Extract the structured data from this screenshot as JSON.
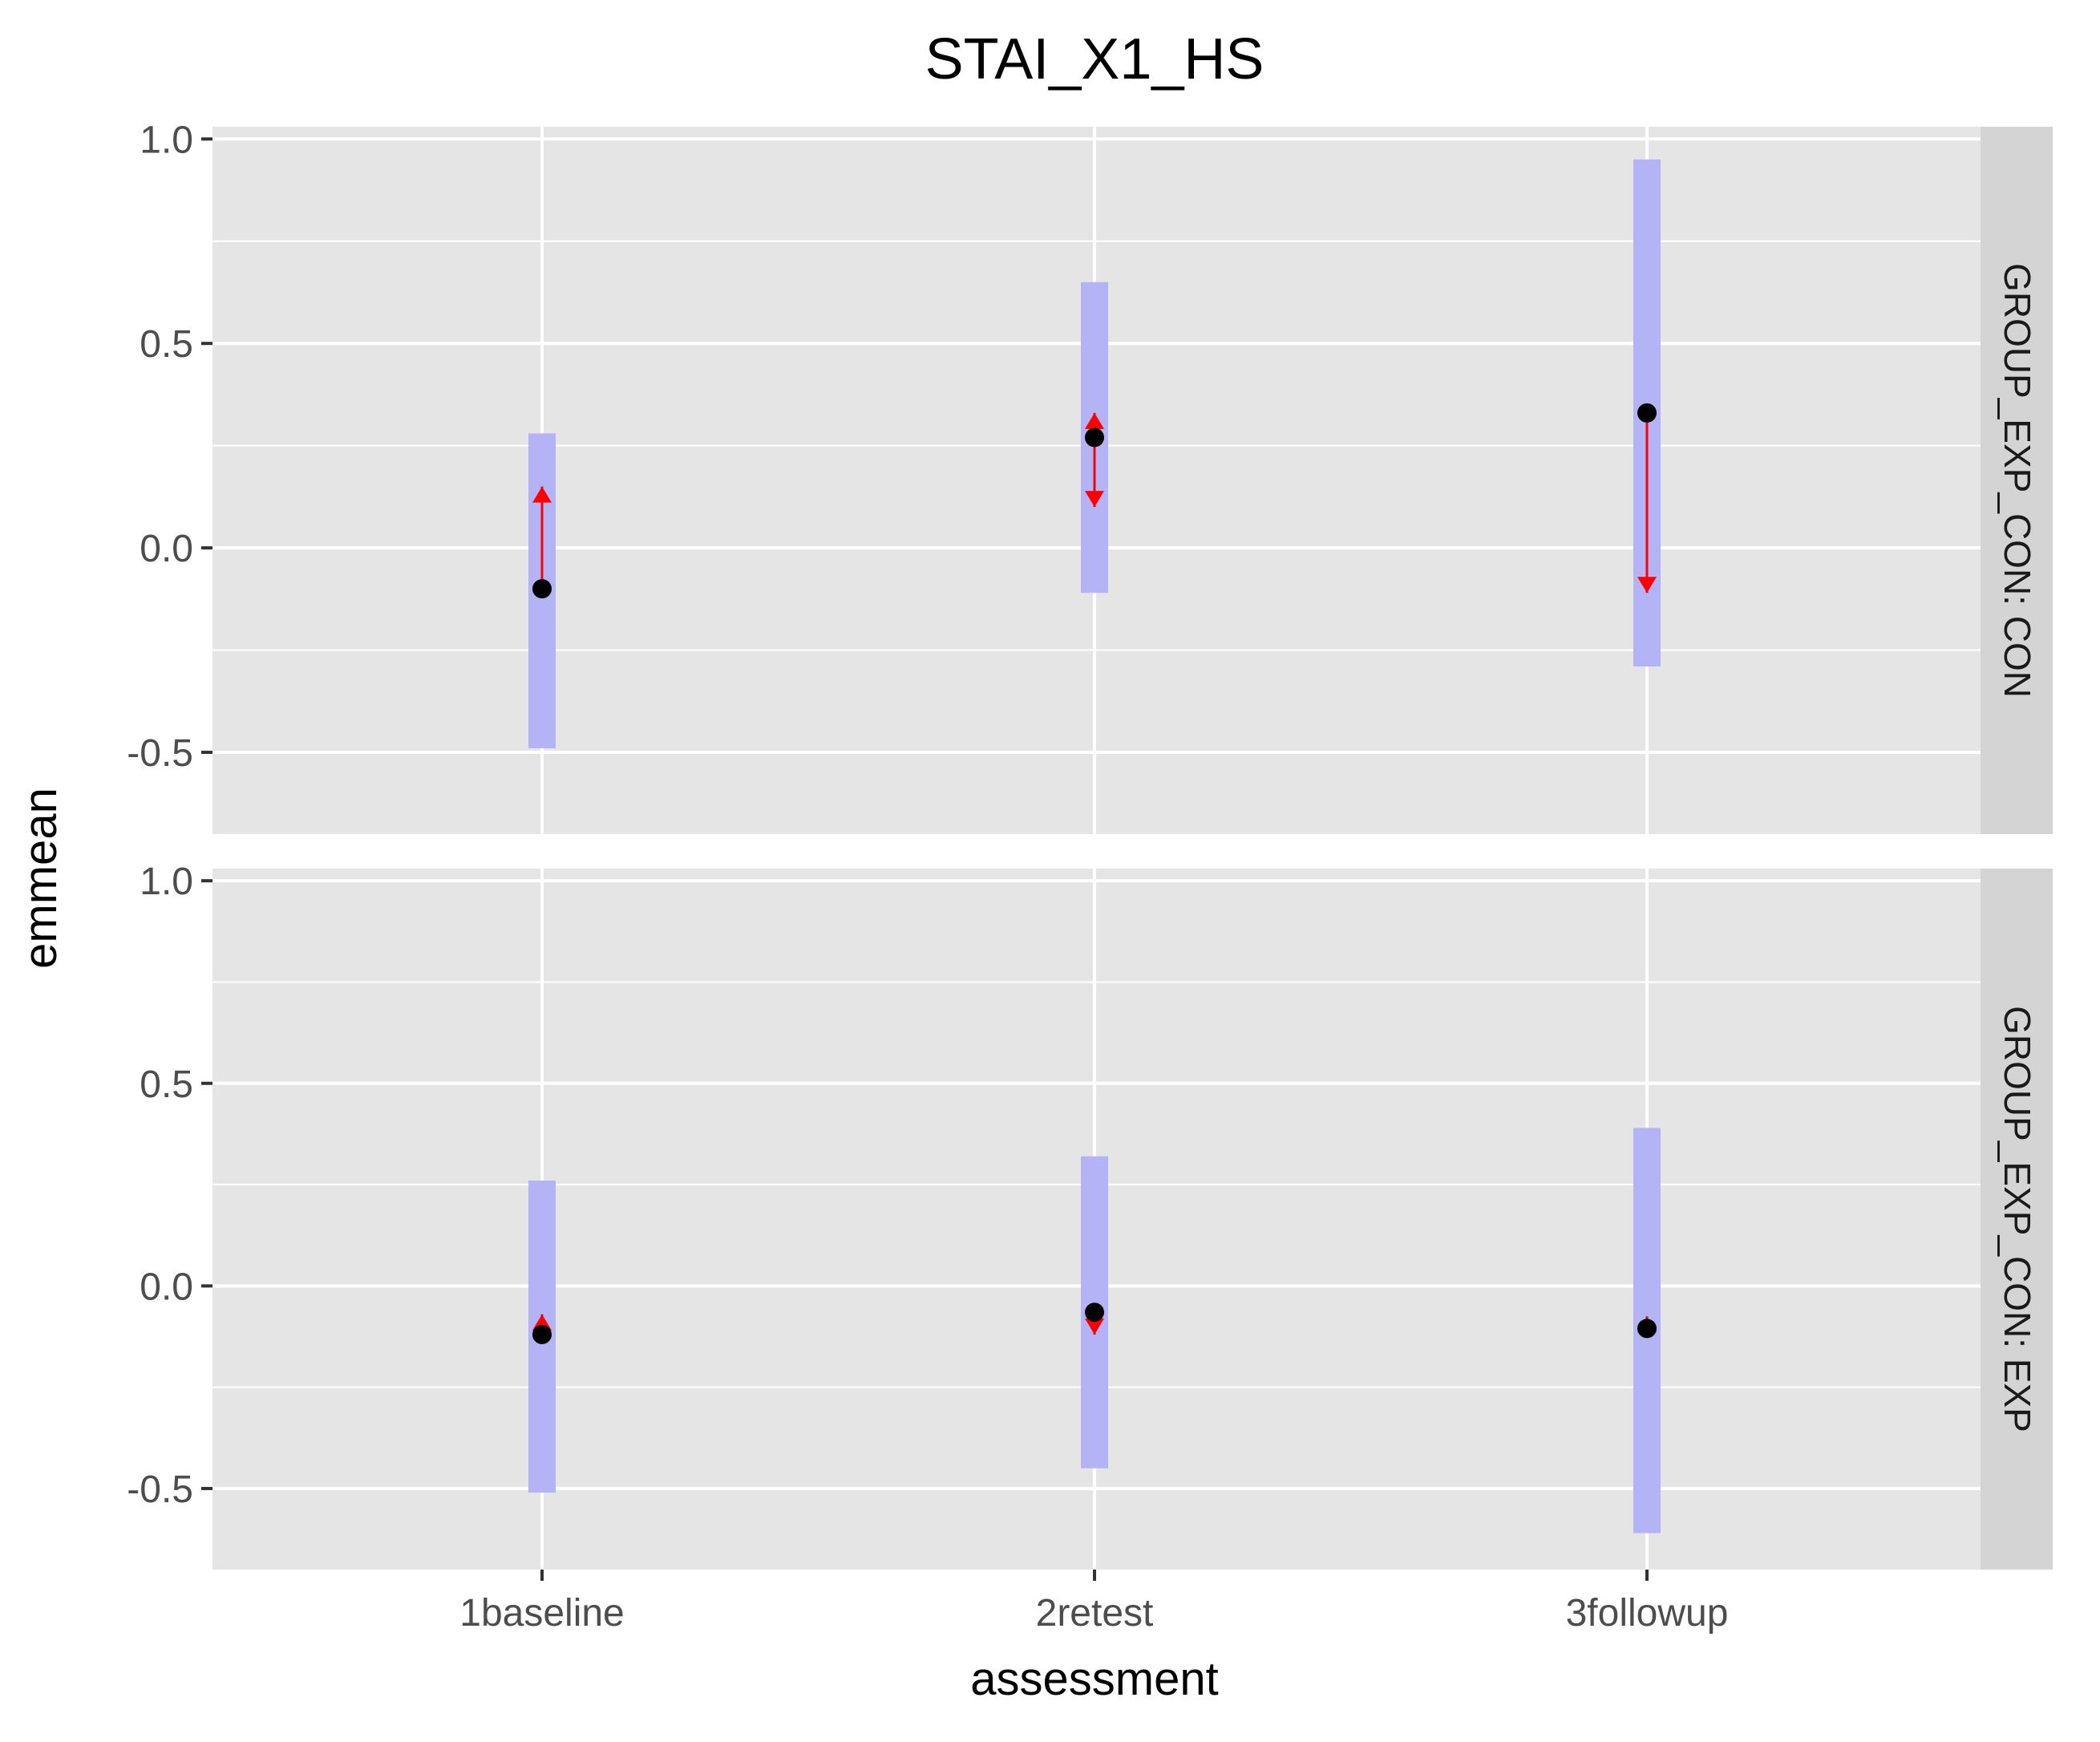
{
  "chart_data": {
    "type": "errorbar",
    "title": "STAI_X1_HS",
    "xlabel": "assessment",
    "ylabel": "emmean",
    "categories": [
      "1baseline",
      "2retest",
      "3followup"
    ],
    "ylim": [
      -0.7,
      1.03
    ],
    "yticks": [
      -0.5,
      0.0,
      0.5,
      1.0
    ],
    "ytick_labels": [
      "-0.5",
      "0.0",
      "0.5",
      "1.0"
    ],
    "grid": true,
    "colors": {
      "panel_bg": "#e5e5e5",
      "strip_bg": "#d4d4d4",
      "grid": "#ffffff",
      "ci_bar": "#b3b3f5",
      "arrow": "#ff0000",
      "point": "#000000"
    },
    "panels": [
      {
        "label": "GROUP_EXP_CON: CON",
        "points": [
          {
            "category": "1baseline",
            "emmean": -0.1,
            "ci_low": -0.49,
            "ci_high": 0.28,
            "arrow_low": -0.1,
            "arrow_high": 0.15
          },
          {
            "category": "2retest",
            "emmean": 0.27,
            "ci_low": -0.11,
            "ci_high": 0.65,
            "arrow_low": 0.1,
            "arrow_high": 0.33
          },
          {
            "category": "3followup",
            "emmean": 0.33,
            "ci_low": -0.29,
            "ci_high": 0.95,
            "arrow_low": -0.11,
            "arrow_high": 0.33
          }
        ]
      },
      {
        "label": "GROUP_EXP_CON: EXP",
        "points": [
          {
            "category": "1baseline",
            "emmean": -0.12,
            "ci_low": -0.51,
            "ci_high": 0.26,
            "arrow_low": -0.12,
            "arrow_high": -0.07
          },
          {
            "category": "2retest",
            "emmean": -0.065,
            "ci_low": -0.45,
            "ci_high": 0.32,
            "arrow_low": -0.12,
            "arrow_high": -0.065
          },
          {
            "category": "3followup",
            "emmean": -0.105,
            "ci_low": -0.61,
            "ci_high": 0.39,
            "arrow_low": -0.105,
            "arrow_high": -0.075
          }
        ]
      }
    ]
  }
}
